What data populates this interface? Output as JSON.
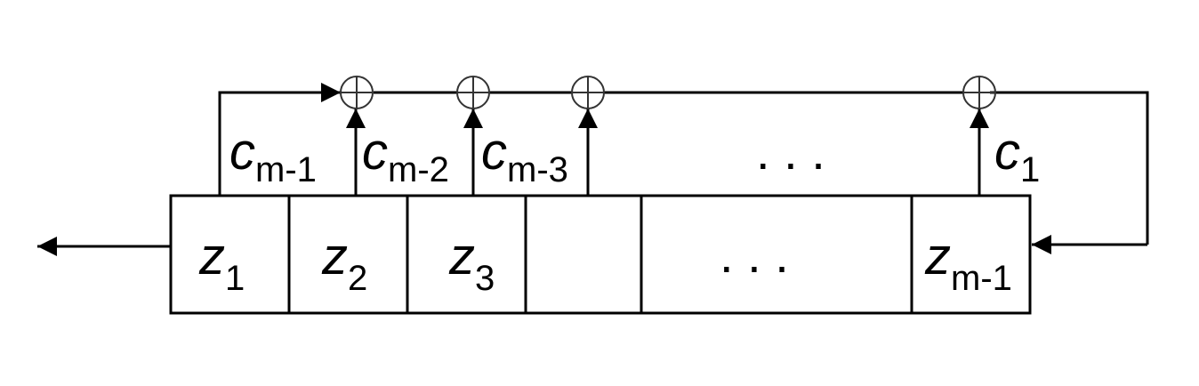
{
  "colors": {
    "line": "#000000",
    "background": "#ffffff",
    "xor": "#333333"
  },
  "registers": [
    {
      "var": "z",
      "sub": "1"
    },
    {
      "var": "z",
      "sub": "2"
    },
    {
      "var": "z",
      "sub": "3"
    },
    {
      "var": "",
      "sub": ""
    },
    {
      "dots": ". . ."
    },
    {
      "var": "z",
      "sub": "m-1"
    }
  ],
  "coefficients": [
    {
      "var": "c",
      "sub": "m-1"
    },
    {
      "var": "c",
      "sub": "m-2"
    },
    {
      "var": "c",
      "sub": "m-3"
    },
    {
      "dots": ". . ."
    },
    {
      "var": "c",
      "sub": "1"
    }
  ],
  "xor_symbol": "⊕",
  "arrows": [
    "output-arrow",
    "feedback-arrow",
    "tap-arrow"
  ]
}
